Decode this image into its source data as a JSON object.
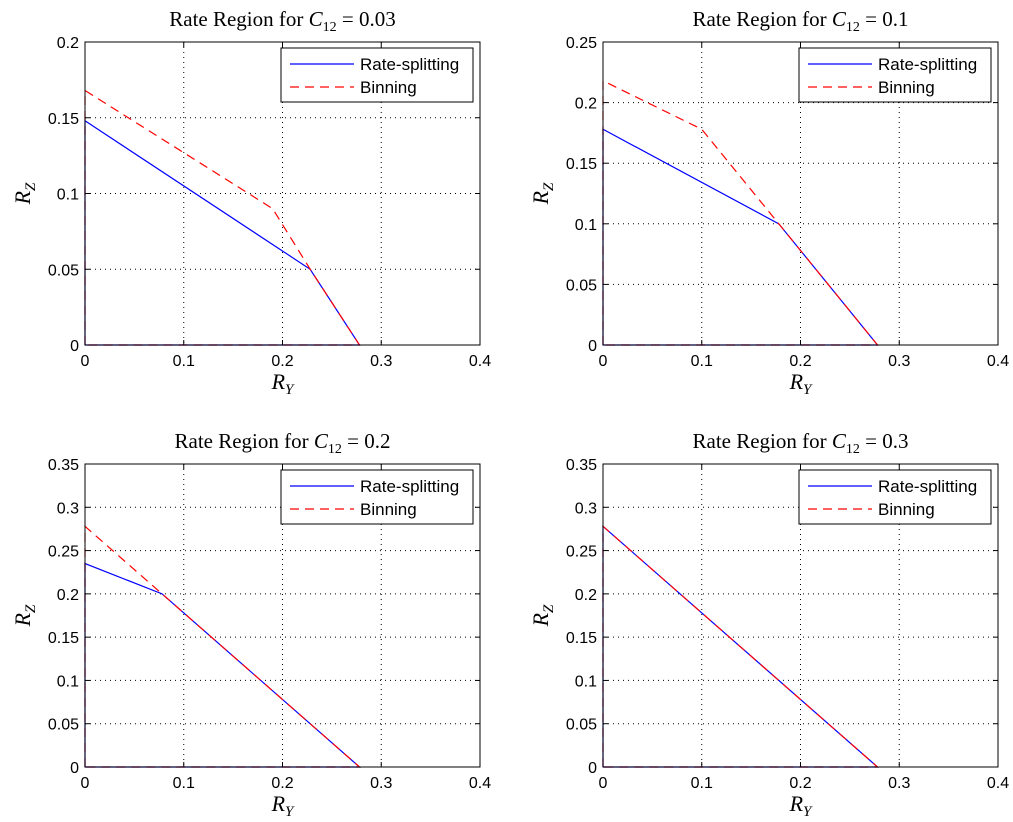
{
  "chart_data": [
    {
      "type": "line",
      "title_prefix": "Rate Region for ",
      "title_symbol": "C",
      "title_subscript": "12",
      "title_suffix": " = 0.03",
      "xlabel_symbol": "R",
      "xlabel_subscript": "Y",
      "ylabel_symbol": "R",
      "ylabel_subscript": "Z",
      "xlim": [
        0,
        0.4
      ],
      "ylim": [
        0,
        0.2
      ],
      "xticks": [
        "0",
        "0.1",
        "0.2",
        "0.3",
        "0.4"
      ],
      "yticks": [
        "0",
        "0.05",
        "0.1",
        "0.15",
        "0.2"
      ],
      "grid": true,
      "legend_position": "top-right",
      "series": [
        {
          "name": "Rate-splitting",
          "color": "#0000ff",
          "style": "solid",
          "x": [
            0,
            0,
            0.228,
            0.278,
            0
          ],
          "y": [
            0,
            0.148,
            0.05,
            0,
            0
          ]
        },
        {
          "name": "Binning",
          "color": "#ff0000",
          "style": "dashed",
          "x": [
            0,
            0,
            0.19,
            0.228,
            0.278,
            0
          ],
          "y": [
            0,
            0.168,
            0.09,
            0.05,
            0,
            0
          ]
        }
      ]
    },
    {
      "type": "line",
      "title_prefix": "Rate Region for ",
      "title_symbol": "C",
      "title_subscript": "12",
      "title_suffix": " = 0.1",
      "xlabel_symbol": "R",
      "xlabel_subscript": "Y",
      "ylabel_symbol": "R",
      "ylabel_subscript": "Z",
      "xlim": [
        0,
        0.4
      ],
      "ylim": [
        0,
        0.25
      ],
      "xticks": [
        "0",
        "0.1",
        "0.2",
        "0.3",
        "0.4"
      ],
      "yticks": [
        "0",
        "0.05",
        "0.1",
        "0.15",
        "0.2",
        "0.25"
      ],
      "grid": true,
      "legend_position": "top-right",
      "series": [
        {
          "name": "Rate-splitting",
          "color": "#0000ff",
          "style": "solid",
          "x": [
            0,
            0,
            0.178,
            0.278,
            0
          ],
          "y": [
            0,
            0.178,
            0.1,
            0,
            0
          ]
        },
        {
          "name": "Binning",
          "color": "#ff0000",
          "style": "dashed",
          "x": [
            0,
            0,
            0.1,
            0.178,
            0.278,
            0
          ],
          "y": [
            0,
            0.218,
            0.178,
            0.1,
            0,
            0
          ]
        }
      ]
    },
    {
      "type": "line",
      "title_prefix": "Rate Region for ",
      "title_symbol": "C",
      "title_subscript": "12",
      "title_suffix": " = 0.2",
      "xlabel_symbol": "R",
      "xlabel_subscript": "Y",
      "ylabel_symbol": "R",
      "ylabel_subscript": "Z",
      "xlim": [
        0,
        0.4
      ],
      "ylim": [
        0,
        0.35
      ],
      "xticks": [
        "0",
        "0.1",
        "0.2",
        "0.3",
        "0.4"
      ],
      "yticks": [
        "0",
        "0.05",
        "0.1",
        "0.15",
        "0.2",
        "0.25",
        "0.3",
        "0.35"
      ],
      "grid": true,
      "legend_position": "top-right",
      "series": [
        {
          "name": "Rate-splitting",
          "color": "#0000ff",
          "style": "solid",
          "x": [
            0,
            0,
            0.078,
            0.278,
            0
          ],
          "y": [
            0,
            0.235,
            0.2,
            0,
            0
          ]
        },
        {
          "name": "Binning",
          "color": "#ff0000",
          "style": "dashed",
          "x": [
            0,
            0,
            0.078,
            0.278,
            0
          ],
          "y": [
            0,
            0.278,
            0.2,
            0,
            0
          ]
        }
      ]
    },
    {
      "type": "line",
      "title_prefix": "Rate Region for ",
      "title_symbol": "C",
      "title_subscript": "12",
      "title_suffix": " = 0.3",
      "xlabel_symbol": "R",
      "xlabel_subscript": "Y",
      "ylabel_symbol": "R",
      "ylabel_subscript": "Z",
      "xlim": [
        0,
        0.4
      ],
      "ylim": [
        0,
        0.35
      ],
      "xticks": [
        "0",
        "0.1",
        "0.2",
        "0.3",
        "0.4"
      ],
      "yticks": [
        "0",
        "0.05",
        "0.1",
        "0.15",
        "0.2",
        "0.25",
        "0.3",
        "0.35"
      ],
      "grid": true,
      "legend_position": "top-right",
      "series": [
        {
          "name": "Rate-splitting",
          "color": "#0000ff",
          "style": "solid",
          "x": [
            0,
            0,
            0.278,
            0
          ],
          "y": [
            0,
            0.278,
            0,
            0
          ]
        },
        {
          "name": "Binning",
          "color": "#ff0000",
          "style": "dashed",
          "x": [
            0,
            0,
            0.278,
            0
          ],
          "y": [
            0,
            0.278,
            0,
            0
          ]
        }
      ]
    }
  ]
}
